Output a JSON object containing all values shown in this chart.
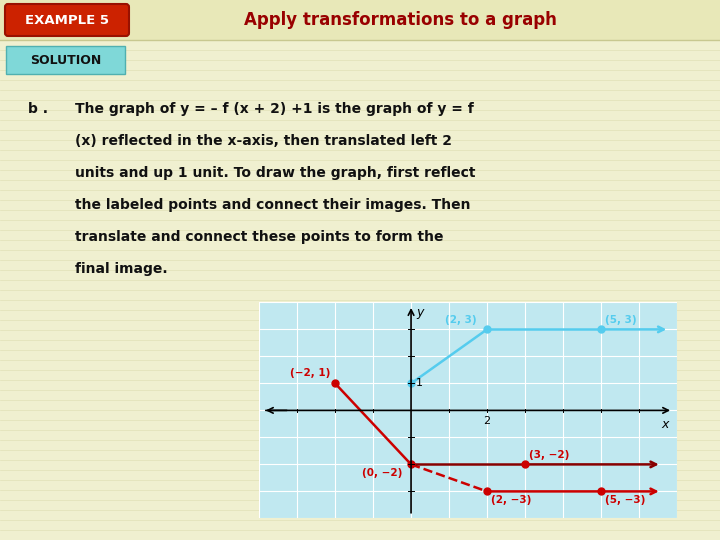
{
  "background_color": "#f0f0d0",
  "title_box_color": "#cc2200",
  "title_label": "EXAMPLE 5",
  "title_text": "Apply transformations to a graph",
  "solution_box_color": "#7fd8d8",
  "solution_text": "SOLUTION",
  "paragraph_lines": [
    "The graph of y = – f (x + 2) +1 is the graph of y = f",
    "(x) reflected in the x-axis, then translated left 2",
    "units and up 1 unit. To draw the graph, first reflect",
    "the labeled points and connect their images. Then",
    "translate and connect these points to form the",
    "final image."
  ],
  "graph": {
    "xlim": [
      -4,
      7
    ],
    "ylim": [
      -4,
      4
    ],
    "red_color": "#cc0000",
    "blue_color": "#55ccee",
    "darkred_color": "#880000",
    "bg_color": "#c0e8f0",
    "grid_color": "#ffffff"
  }
}
